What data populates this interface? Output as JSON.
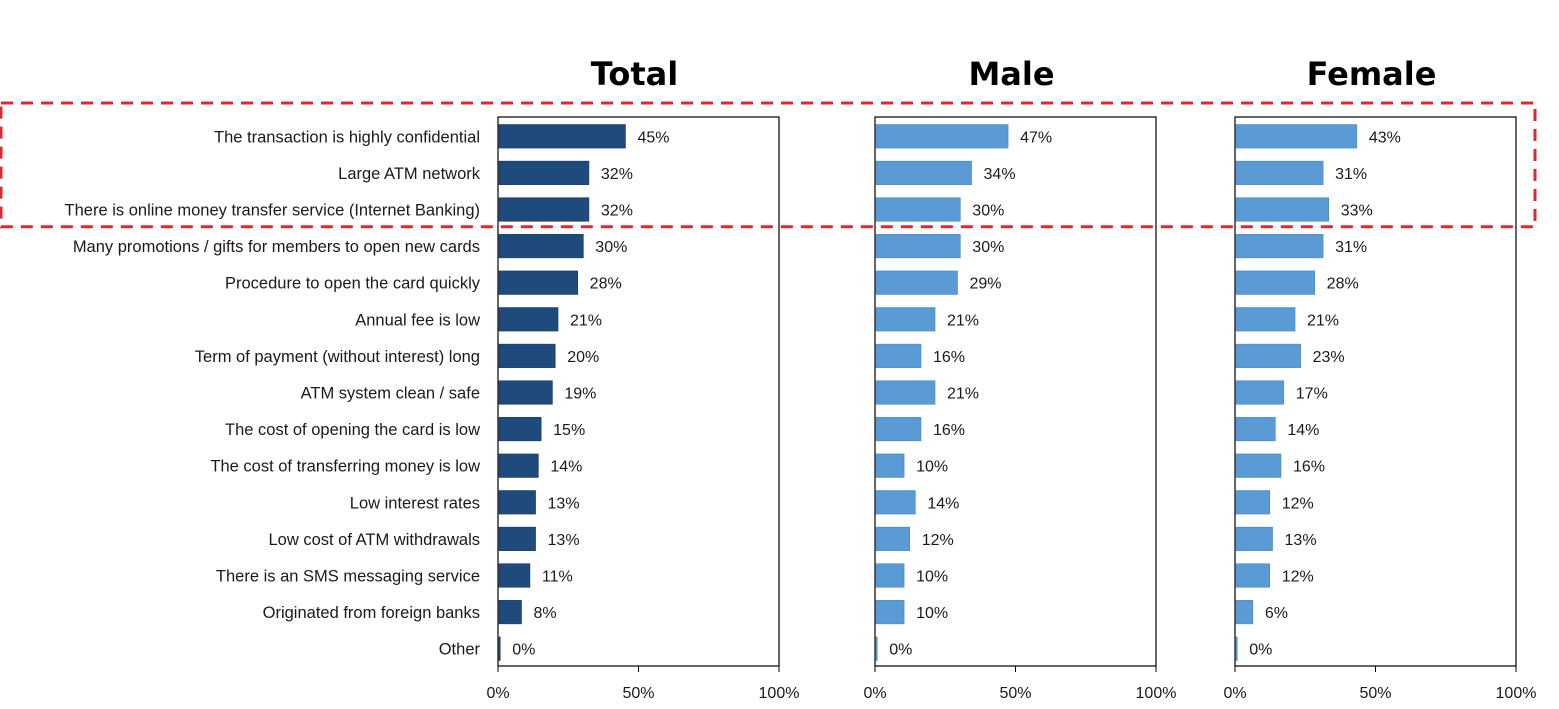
{
  "chart_data": {
    "type": "bar",
    "orientation": "horizontal",
    "categories": [
      "The transaction is highly confidential",
      "Large ATM network",
      "There is online money transfer service (Internet Banking)",
      "Many promotions / gifts for members to open new cards",
      "Procedure to open the card quickly",
      "Annual fee is low",
      "Term of payment (without interest) long",
      "ATM system clean / safe",
      "The cost of opening the card is low",
      "The cost of transferring money is low",
      "Low interest rates",
      "Low cost of ATM withdrawals",
      "There is an SMS messaging service",
      "Originated from foreign banks",
      "Other"
    ],
    "panels": [
      {
        "title": "Total",
        "color": "#1f4a7c",
        "values": [
          45,
          32,
          32,
          30,
          28,
          21,
          20,
          19,
          15,
          14,
          13,
          13,
          11,
          8,
          0
        ],
        "labels": [
          "45%",
          "32%",
          "32%",
          "30%",
          "28%",
          "21%",
          "20%",
          "19%",
          "15%",
          "14%",
          "13%",
          "13%",
          "11%",
          "8%",
          "0%"
        ]
      },
      {
        "title": "Male",
        "color": "#5b9bd5",
        "values": [
          47,
          34,
          30,
          30,
          29,
          21,
          16,
          21,
          16,
          10,
          14,
          12,
          10,
          10,
          0
        ],
        "labels": [
          "47%",
          "34%",
          "30%",
          "30%",
          "29%",
          "21%",
          "16%",
          "21%",
          "16%",
          "10%",
          "14%",
          "12%",
          "10%",
          "10%",
          "0%"
        ]
      },
      {
        "title": "Female",
        "color": "#5b9bd5",
        "values": [
          43,
          31,
          33,
          31,
          28,
          21,
          23,
          17,
          14,
          16,
          12,
          13,
          12,
          6,
          0
        ],
        "labels": [
          "43%",
          "31%",
          "33%",
          "31%",
          "28%",
          "21%",
          "23%",
          "17%",
          "14%",
          "16%",
          "12%",
          "13%",
          "12%",
          "6%",
          "0%"
        ]
      }
    ],
    "x_ticks": [
      "0%",
      "50%",
      "100%"
    ],
    "xlim": [
      0,
      100
    ],
    "highlight": {
      "style": "dashed-box",
      "color": "#e0292e",
      "categories": [
        "The transaction is highly confidential",
        "Large ATM network",
        "There is online money transfer service (Internet Banking)"
      ]
    }
  }
}
